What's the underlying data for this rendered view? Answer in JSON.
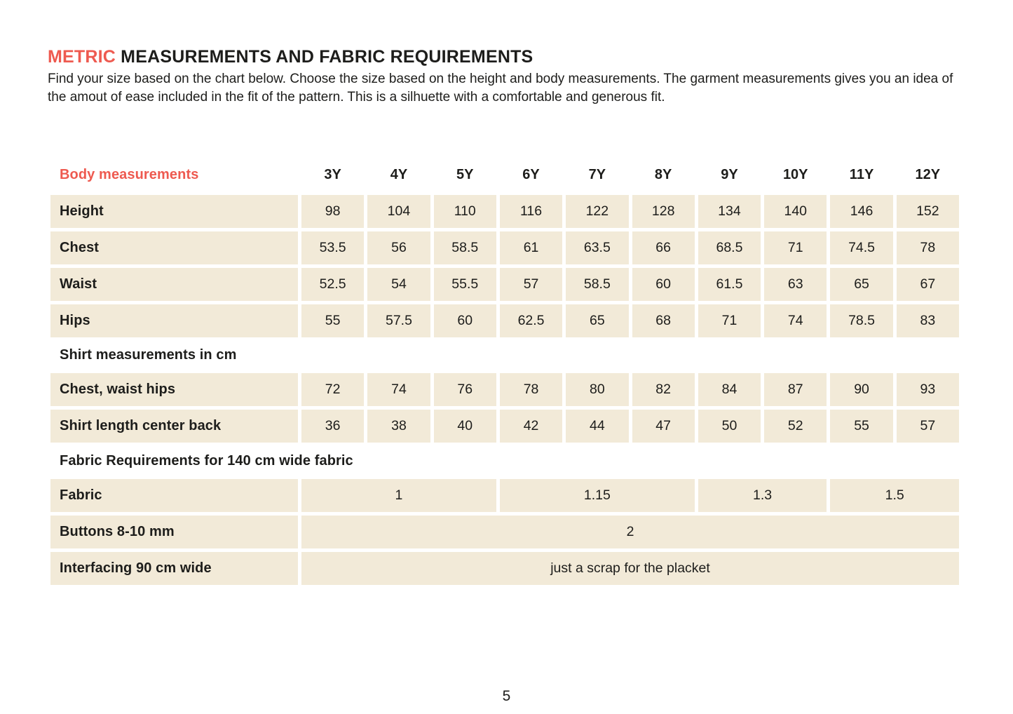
{
  "title": {
    "highlight": "METRIC",
    "rest": " MEASUREMENTS AND FABRIC REQUIREMENTS"
  },
  "intro": "Find your size based on the chart below. Choose the size based on the height and body measurements. The garment measurements gives you an idea of the amout of ease included in the fit of the pattern. This is a silhuette with a comfortable and generous fit.",
  "page_number": "5",
  "colors": {
    "accent": "#ee5a50",
    "cell_background": "#f2ead8",
    "text": "#1d1d1b"
  },
  "chart_data": {
    "type": "table",
    "header": {
      "label": "Body measurements",
      "sizes": [
        "3Y",
        "4Y",
        "5Y",
        "6Y",
        "7Y",
        "8Y",
        "9Y",
        "10Y",
        "11Y",
        "12Y"
      ]
    },
    "body_rows": [
      {
        "label": "Height",
        "values": [
          "98",
          "104",
          "110",
          "116",
          "122",
          "128",
          "134",
          "140",
          "146",
          "152"
        ]
      },
      {
        "label": "Chest",
        "values": [
          "53.5",
          "56",
          "58.5",
          "61",
          "63.5",
          "66",
          "68.5",
          "71",
          "74.5",
          "78"
        ]
      },
      {
        "label": "Waist",
        "values": [
          "52.5",
          "54",
          "55.5",
          "57",
          "58.5",
          "60",
          "61.5",
          "63",
          "65",
          "67"
        ]
      },
      {
        "label": "Hips",
        "values": [
          "55",
          "57.5",
          "60",
          "62.5",
          "65",
          "68",
          "71",
          "74",
          "78.5",
          "83"
        ]
      }
    ],
    "shirt_section_label": "Shirt measurements in cm",
    "shirt_rows": [
      {
        "label": "Chest, waist hips",
        "values": [
          "72",
          "74",
          "76",
          "78",
          "80",
          "82",
          "84",
          "87",
          "90",
          "93"
        ]
      },
      {
        "label": "Shirt length center back",
        "values": [
          "36",
          "38",
          "40",
          "42",
          "44",
          "47",
          "50",
          "52",
          "55",
          "57"
        ]
      }
    ],
    "fabric_section_label": "Fabric Requirements for 140 cm wide fabric",
    "fabric_row": {
      "label": "Fabric",
      "cells": [
        {
          "value": "1",
          "span": 3
        },
        {
          "value": "1.15",
          "span": 3
        },
        {
          "value": "1.3",
          "span": 2
        },
        {
          "value": "1.5",
          "span": 2
        }
      ]
    },
    "buttons_row": {
      "label": "Buttons 8-10 mm",
      "value": "2",
      "span": 10
    },
    "interfacing_row": {
      "label": "Interfacing 90 cm wide",
      "value": "just a scrap for the placket",
      "span": 10
    }
  }
}
